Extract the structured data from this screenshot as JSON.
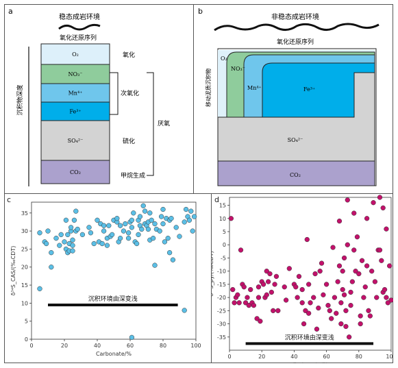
{
  "panel_a": {
    "letter": "a",
    "env_title": "稳态成岩环境",
    "redox_title": "氧化还原序列",
    "depth_label": "沉积物深度",
    "layers": [
      {
        "label": "O₂",
        "color": "#ddf0fa"
      },
      {
        "label": "NO₃⁻",
        "color": "#8fcc9c"
      },
      {
        "label": "Mn⁴⁺",
        "color": "#6fc6ec"
      },
      {
        "label": "Fe³⁺",
        "color": "#00aeea"
      },
      {
        "label": "SO₄²⁻",
        "color": "#d3d3d3"
      },
      {
        "label": "CO₂",
        "color": "#aba1cd"
      }
    ],
    "zones": {
      "oxic": "氧化",
      "suboxic": "次氧化",
      "sulfidic": "硫化",
      "methanogenic": "甲烷生成",
      "anoxic": "厌氧"
    }
  },
  "panel_b": {
    "letter": "b",
    "env_title": "非稳态成岩环境",
    "redox_title": "氧化还原序列",
    "mobile_label": "移动泥质沉积物",
    "labels": {
      "o2": "O₂",
      "no3": "NO₃⁻",
      "mn": "Mn⁴⁺",
      "fe": "Fe³⁺",
      "so4": "SO₄²⁻",
      "co2": "CO₂"
    }
  },
  "chart_data": [
    {
      "type": "scatter",
      "panel": "c",
      "xlabel": "Carbonate/%",
      "ylabel": "δ³⁴S_CAS/(‰CDT)",
      "xlim": [
        0,
        100
      ],
      "ylim": [
        0,
        38
      ],
      "xticks": [
        0,
        20,
        40,
        60,
        80,
        100
      ],
      "yticks": [
        0,
        5,
        10,
        15,
        20,
        25,
        30,
        35
      ],
      "annotation": "沉积环境由深变浅",
      "arrow_range": [
        10,
        89
      ],
      "arrow_y": 9.5,
      "color": "#5bbfe6",
      "points": [
        [
          5,
          29.5
        ],
        [
          5,
          14
        ],
        [
          8,
          27
        ],
        [
          9,
          26.5
        ],
        [
          10,
          30
        ],
        [
          12,
          20
        ],
        [
          12,
          24
        ],
        [
          15,
          28
        ],
        [
          17,
          26
        ],
        [
          18,
          29
        ],
        [
          20,
          27
        ],
        [
          21,
          25
        ],
        [
          21,
          33
        ],
        [
          22,
          24
        ],
        [
          22,
          29
        ],
        [
          23,
          24.5
        ],
        [
          23,
          26.5
        ],
        [
          24,
          30
        ],
        [
          24,
          31
        ],
        [
          25,
          24.5
        ],
        [
          25,
          26
        ],
        [
          25,
          27.5
        ],
        [
          26,
          33
        ],
        [
          27,
          35.5
        ],
        [
          27,
          30
        ],
        [
          28,
          30.5
        ],
        [
          31,
          29
        ],
        [
          35,
          31
        ],
        [
          36,
          29.5
        ],
        [
          38,
          26.5
        ],
        [
          40,
          33
        ],
        [
          41,
          27
        ],
        [
          42,
          32
        ],
        [
          43,
          26.5
        ],
        [
          44,
          30
        ],
        [
          44,
          31.5
        ],
        [
          46,
          26
        ],
        [
          46,
          28
        ],
        [
          47,
          31.5
        ],
        [
          48,
          28.5
        ],
        [
          49,
          29
        ],
        [
          50,
          33
        ],
        [
          52,
          32.5
        ],
        [
          52,
          33.5
        ],
        [
          53,
          27
        ],
        [
          54,
          31.5
        ],
        [
          54,
          28
        ],
        [
          56,
          30
        ],
        [
          57,
          32
        ],
        [
          59,
          28
        ],
        [
          59,
          29.5
        ],
        [
          60,
          32.5
        ],
        [
          61,
          31
        ],
        [
          61,
          33
        ],
        [
          62,
          35
        ],
        [
          63,
          27
        ],
        [
          64,
          26.5
        ],
        [
          65,
          29
        ],
        [
          65,
          33
        ],
        [
          66,
          31.5
        ],
        [
          66,
          34
        ],
        [
          67,
          30.5
        ],
        [
          68,
          37
        ],
        [
          69,
          35.5
        ],
        [
          69,
          32
        ],
        [
          70,
          31.5
        ],
        [
          71,
          30.5
        ],
        [
          71,
          32.5
        ],
        [
          72,
          27.5
        ],
        [
          72,
          35
        ],
        [
          73,
          33
        ],
        [
          74,
          28
        ],
        [
          75,
          20.5
        ],
        [
          75,
          32
        ],
        [
          76,
          30.5
        ],
        [
          78,
          30
        ],
        [
          79,
          34
        ],
        [
          80,
          32
        ],
        [
          80,
          36
        ],
        [
          81,
          27
        ],
        [
          82,
          33.5
        ],
        [
          83,
          28
        ],
        [
          84,
          24
        ],
        [
          84,
          33
        ],
        [
          85,
          33.5
        ],
        [
          86,
          22
        ],
        [
          88,
          31
        ],
        [
          90,
          28.5
        ],
        [
          93,
          8
        ],
        [
          93,
          32.5
        ],
        [
          94,
          36
        ],
        [
          95,
          34
        ],
        [
          96,
          33
        ],
        [
          97,
          35.5
        ],
        [
          98,
          30
        ],
        [
          99,
          34
        ],
        [
          61,
          0.5
        ]
      ]
    },
    {
      "type": "scatter",
      "panel": "d",
      "xlabel": "Carbonate/%",
      "ylabel": "δ³⁴S_py/(‰CDT)",
      "xlim": [
        0,
        100
      ],
      "ylim": [
        -40,
        18
      ],
      "xticks": [
        0,
        20,
        40,
        60,
        80,
        100
      ],
      "yticks": [
        -35,
        -30,
        -25,
        -20,
        -15,
        -10,
        -5,
        0,
        5,
        10,
        15
      ],
      "annotation": "沉积环境由深变浅",
      "arrow_range": [
        10,
        89
      ],
      "arrow_y": -37.5,
      "color": "#c2116b",
      "points": [
        [
          1,
          10
        ],
        [
          2,
          -17
        ],
        [
          3,
          -22
        ],
        [
          4,
          -20
        ],
        [
          5,
          -19
        ],
        [
          6,
          -22
        ],
        [
          7,
          -2
        ],
        [
          8,
          -15
        ],
        [
          9,
          -16
        ],
        [
          10,
          -22
        ],
        [
          11,
          -20
        ],
        [
          12,
          -23
        ],
        [
          13,
          -17
        ],
        [
          14,
          -22
        ],
        [
          15,
          -23
        ],
        [
          17,
          -28
        ],
        [
          18,
          -16
        ],
        [
          18,
          -20
        ],
        [
          19,
          -29
        ],
        [
          20,
          -14
        ],
        [
          21,
          -15
        ],
        [
          22,
          -20
        ],
        [
          23,
          -10
        ],
        [
          23,
          -19
        ],
        [
          24,
          -14
        ],
        [
          25,
          -11
        ],
        [
          26,
          -18
        ],
        [
          27,
          -25
        ],
        [
          28,
          -15
        ],
        [
          29,
          -12
        ],
        [
          30,
          -25
        ],
        [
          34,
          -16
        ],
        [
          35,
          -21
        ],
        [
          37,
          -9
        ],
        [
          40,
          -15
        ],
        [
          41,
          -16
        ],
        [
          42,
          -20
        ],
        [
          43,
          -12
        ],
        [
          45,
          -17
        ],
        [
          45,
          -22
        ],
        [
          46,
          -30
        ],
        [
          47,
          -25
        ],
        [
          48,
          2
        ],
        [
          49,
          -15
        ],
        [
          49,
          -26
        ],
        [
          50,
          -22
        ],
        [
          52,
          -20
        ],
        [
          53,
          -11
        ],
        [
          54,
          -32
        ],
        [
          55,
          -24
        ],
        [
          56,
          -10
        ],
        [
          57,
          -7
        ],
        [
          58,
          -19
        ],
        [
          60,
          -15
        ],
        [
          61,
          -23
        ],
        [
          62,
          -25
        ],
        [
          63,
          -28
        ],
        [
          64,
          -1
        ],
        [
          65,
          -20
        ],
        [
          66,
          -26
        ],
        [
          67,
          -14
        ],
        [
          68,
          -8
        ],
        [
          68,
          9
        ],
        [
          69,
          -22
        ],
        [
          69,
          -30
        ],
        [
          70,
          -10
        ],
        [
          70,
          -17
        ],
        [
          71,
          -5
        ],
        [
          71,
          -19
        ],
        [
          72,
          -31
        ],
        [
          72,
          -25
        ],
        [
          73,
          0
        ],
        [
          73,
          17
        ],
        [
          74,
          -35
        ],
        [
          75,
          -18
        ],
        [
          75,
          -23
        ],
        [
          76,
          -14
        ],
        [
          77,
          -2
        ],
        [
          77,
          12
        ],
        [
          78,
          -10
        ],
        [
          79,
          3
        ],
        [
          80,
          -11
        ],
        [
          81,
          -27
        ],
        [
          81,
          -30
        ],
        [
          82,
          -6
        ],
        [
          83,
          -20
        ],
        [
          84,
          -16
        ],
        [
          85,
          -8
        ],
        [
          85,
          10
        ],
        [
          86,
          -25
        ],
        [
          87,
          -27
        ],
        [
          88,
          -10
        ],
        [
          89,
          16
        ],
        [
          90,
          -14
        ],
        [
          91,
          -20
        ],
        [
          92,
          -2
        ],
        [
          93,
          18
        ],
        [
          93,
          -2
        ],
        [
          94,
          -6
        ],
        [
          95,
          -18
        ],
        [
          96,
          -17
        ],
        [
          97,
          -20
        ],
        [
          98,
          -22
        ],
        [
          99,
          -8
        ],
        [
          100,
          -21
        ],
        [
          97,
          6
        ],
        [
          95,
          14
        ]
      ]
    }
  ]
}
